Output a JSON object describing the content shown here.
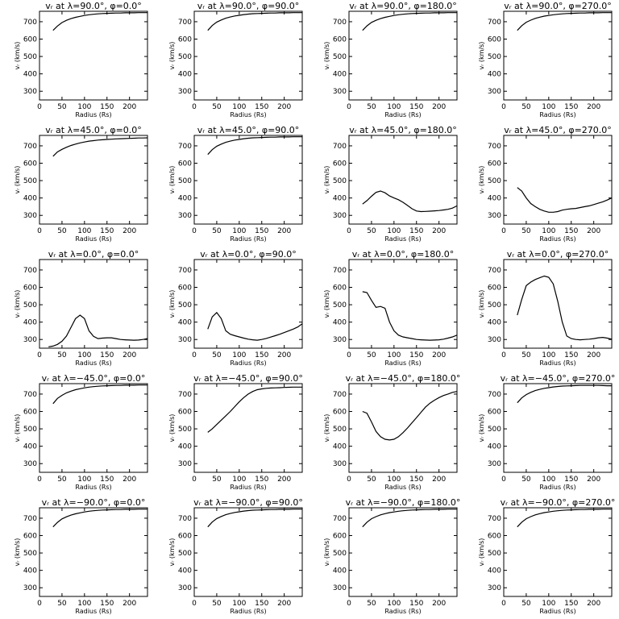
{
  "figure": {
    "xlabel": "Radius (Rs)",
    "ylabel": "vᵣ (km/s)",
    "xlim": [
      0,
      240
    ],
    "ylim": [
      250,
      760
    ],
    "xticks": [
      0,
      50,
      100,
      150,
      200
    ],
    "yticks": [
      300,
      400,
      500,
      600,
      700
    ],
    "grid": false,
    "colors": {
      "line": "#000000",
      "background": "#ffffff"
    }
  },
  "chart_data": [
    {
      "type": "line",
      "title": "vᵣ at λ=90.0°, φ=0.0°",
      "x": [
        30,
        40,
        50,
        60,
        70,
        80,
        90,
        100,
        110,
        120,
        130,
        140,
        150,
        160,
        170,
        180,
        190,
        200,
        210,
        220,
        230,
        240
      ],
      "y": [
        650,
        675,
        695,
        708,
        718,
        725,
        731,
        736,
        740,
        743,
        745,
        747,
        748,
        749,
        750,
        750,
        751,
        751,
        751,
        752,
        752,
        752
      ]
    },
    {
      "type": "line",
      "title": "vᵣ at λ=90.0°, φ=90.0°",
      "x": [
        30,
        40,
        50,
        60,
        70,
        80,
        90,
        100,
        110,
        120,
        130,
        140,
        150,
        160,
        170,
        180,
        190,
        200,
        210,
        220,
        230,
        240
      ],
      "y": [
        650,
        678,
        698,
        710,
        720,
        727,
        733,
        737,
        741,
        744,
        746,
        747,
        748,
        749,
        750,
        750,
        751,
        751,
        751,
        752,
        752,
        752
      ]
    },
    {
      "type": "line",
      "title": "vᵣ at λ=90.0°, φ=180.0°",
      "x": [
        30,
        40,
        50,
        60,
        70,
        80,
        90,
        100,
        110,
        120,
        130,
        140,
        150,
        160,
        170,
        180,
        190,
        200,
        210,
        220,
        230,
        240
      ],
      "y": [
        650,
        676,
        696,
        708,
        718,
        725,
        731,
        736,
        740,
        743,
        745,
        747,
        748,
        749,
        750,
        750,
        751,
        751,
        751,
        752,
        752,
        752
      ]
    },
    {
      "type": "line",
      "title": "vᵣ at λ=90.0°, φ=270.0°",
      "x": [
        30,
        40,
        50,
        60,
        70,
        80,
        90,
        100,
        110,
        120,
        130,
        140,
        150,
        160,
        170,
        180,
        190,
        200,
        210,
        220,
        230,
        240
      ],
      "y": [
        650,
        677,
        697,
        709,
        719,
        726,
        732,
        736,
        740,
        743,
        745,
        747,
        748,
        749,
        750,
        750,
        751,
        751,
        751,
        752,
        752,
        752
      ]
    },
    {
      "type": "line",
      "title": "vᵣ at λ=45.0°, φ=0.0°",
      "x": [
        30,
        40,
        50,
        60,
        70,
        80,
        90,
        100,
        110,
        120,
        130,
        140,
        150,
        160,
        170,
        180,
        190,
        200,
        210,
        220,
        230,
        240
      ],
      "y": [
        640,
        665,
        680,
        692,
        702,
        710,
        717,
        722,
        727,
        730,
        733,
        735,
        737,
        738,
        740,
        741,
        742,
        743,
        744,
        745,
        745,
        746
      ]
    },
    {
      "type": "line",
      "title": "vᵣ at λ=45.0°, φ=90.0°",
      "x": [
        30,
        40,
        50,
        60,
        70,
        80,
        90,
        100,
        110,
        120,
        130,
        140,
        150,
        160,
        170,
        180,
        190,
        200,
        210,
        220,
        230,
        240
      ],
      "y": [
        650,
        678,
        698,
        710,
        720,
        727,
        733,
        737,
        741,
        744,
        746,
        747,
        748,
        749,
        750,
        750,
        751,
        751,
        751,
        752,
        752,
        752
      ]
    },
    {
      "type": "line",
      "title": "vᵣ at λ=45.0°, φ=180.0°",
      "x": [
        30,
        40,
        50,
        60,
        70,
        80,
        90,
        100,
        110,
        120,
        130,
        140,
        150,
        160,
        170,
        180,
        190,
        200,
        210,
        220,
        230,
        240
      ],
      "y": [
        365,
        385,
        410,
        432,
        440,
        430,
        412,
        400,
        390,
        375,
        357,
        338,
        325,
        322,
        323,
        324,
        326,
        328,
        331,
        335,
        342,
        355
      ]
    },
    {
      "type": "line",
      "title": "vᵣ at λ=45.0°, φ=270.0°",
      "x": [
        30,
        40,
        50,
        60,
        70,
        80,
        90,
        100,
        110,
        120,
        130,
        140,
        150,
        160,
        170,
        180,
        190,
        200,
        210,
        220,
        230,
        240
      ],
      "y": [
        460,
        440,
        400,
        368,
        350,
        335,
        325,
        318,
        318,
        322,
        330,
        335,
        338,
        340,
        345,
        350,
        355,
        362,
        370,
        378,
        388,
        400
      ]
    },
    {
      "type": "line",
      "title": "vᵣ at λ=0.0°, φ=0.0°",
      "x": [
        20,
        30,
        40,
        50,
        60,
        70,
        80,
        90,
        100,
        110,
        120,
        130,
        140,
        150,
        160,
        170,
        180,
        190,
        200,
        210,
        220,
        230,
        240
      ],
      "y": [
        258,
        262,
        272,
        290,
        320,
        370,
        420,
        440,
        420,
        350,
        318,
        305,
        308,
        310,
        310,
        305,
        300,
        298,
        297,
        296,
        297,
        300,
        305
      ]
    },
    {
      "type": "line",
      "title": "vᵣ at λ=0.0°, φ=90.0°",
      "x": [
        30,
        40,
        50,
        60,
        70,
        80,
        90,
        100,
        110,
        120,
        130,
        140,
        150,
        160,
        170,
        180,
        190,
        200,
        210,
        220,
        230,
        240
      ],
      "y": [
        360,
        430,
        455,
        420,
        350,
        330,
        322,
        315,
        308,
        302,
        298,
        296,
        300,
        306,
        314,
        322,
        330,
        340,
        350,
        360,
        372,
        390
      ]
    },
    {
      "type": "line",
      "title": "vᵣ at λ=0.0°, φ=180.0°",
      "x": [
        30,
        40,
        50,
        60,
        70,
        80,
        90,
        100,
        110,
        120,
        130,
        140,
        150,
        160,
        170,
        180,
        190,
        200,
        210,
        220,
        230,
        240
      ],
      "y": [
        575,
        570,
        525,
        485,
        490,
        480,
        400,
        350,
        325,
        315,
        310,
        305,
        300,
        298,
        297,
        296,
        297,
        298,
        302,
        308,
        315,
        325
      ]
    },
    {
      "type": "line",
      "title": "vᵣ at λ=0.0°, φ=270.0°",
      "x": [
        30,
        40,
        50,
        60,
        70,
        80,
        90,
        100,
        110,
        120,
        130,
        140,
        150,
        160,
        170,
        180,
        190,
        200,
        210,
        220,
        230,
        240
      ],
      "y": [
        440,
        530,
        610,
        630,
        645,
        655,
        665,
        658,
        620,
        520,
        400,
        320,
        305,
        300,
        298,
        300,
        302,
        305,
        310,
        312,
        308,
        302
      ]
    },
    {
      "type": "line",
      "title": "vᵣ at λ=−45.0°, φ=0.0°",
      "x": [
        30,
        40,
        50,
        60,
        70,
        80,
        90,
        100,
        110,
        120,
        130,
        140,
        150,
        160,
        170,
        180,
        190,
        200,
        210,
        220,
        230,
        240
      ],
      "y": [
        645,
        675,
        693,
        707,
        717,
        725,
        731,
        736,
        740,
        743,
        745,
        747,
        748,
        749,
        750,
        750,
        751,
        751,
        751,
        752,
        752,
        752
      ]
    },
    {
      "type": "line",
      "title": "vᵣ at λ=−45.0°, φ=90.0°",
      "x": [
        30,
        40,
        50,
        60,
        70,
        80,
        90,
        100,
        110,
        120,
        130,
        140,
        150,
        160,
        170,
        180,
        190,
        200,
        210,
        220,
        230,
        240
      ],
      "y": [
        480,
        500,
        525,
        550,
        575,
        600,
        628,
        655,
        680,
        700,
        715,
        725,
        730,
        733,
        735,
        736,
        737,
        738,
        739,
        740,
        740,
        740
      ]
    },
    {
      "type": "line",
      "title": "vᵣ at λ=−45.0°, φ=180.0°",
      "x": [
        30,
        40,
        50,
        60,
        70,
        80,
        90,
        100,
        110,
        120,
        130,
        140,
        150,
        160,
        170,
        180,
        190,
        200,
        210,
        220,
        230,
        240
      ],
      "y": [
        600,
        590,
        540,
        485,
        455,
        440,
        436,
        440,
        455,
        478,
        505,
        535,
        565,
        595,
        625,
        648,
        665,
        680,
        692,
        700,
        710,
        715
      ]
    },
    {
      "type": "line",
      "title": "vᵣ at λ=−45.0°, φ=270.0°",
      "x": [
        30,
        40,
        50,
        60,
        70,
        80,
        90,
        100,
        110,
        120,
        130,
        140,
        150,
        160,
        170,
        180,
        190,
        200,
        210,
        220,
        230,
        240
      ],
      "y": [
        650,
        678,
        697,
        710,
        720,
        727,
        733,
        737,
        741,
        744,
        746,
        747,
        748,
        749,
        750,
        750,
        750,
        750,
        750,
        749,
        748,
        748
      ]
    },
    {
      "type": "line",
      "title": "vᵣ at λ=−90.0°, φ=0.0°",
      "x": [
        30,
        40,
        50,
        60,
        70,
        80,
        90,
        100,
        110,
        120,
        130,
        140,
        150,
        160,
        170,
        180,
        190,
        200,
        210,
        220,
        230,
        240
      ],
      "y": [
        650,
        676,
        696,
        708,
        718,
        725,
        731,
        736,
        740,
        743,
        745,
        747,
        748,
        749,
        750,
        750,
        751,
        751,
        751,
        752,
        752,
        752
      ]
    },
    {
      "type": "line",
      "title": "vᵣ at λ=−90.0°, φ=90.0°",
      "x": [
        30,
        40,
        50,
        60,
        70,
        80,
        90,
        100,
        110,
        120,
        130,
        140,
        150,
        160,
        170,
        180,
        190,
        200,
        210,
        220,
        230,
        240
      ],
      "y": [
        650,
        678,
        698,
        710,
        720,
        727,
        733,
        737,
        741,
        744,
        746,
        747,
        748,
        749,
        750,
        750,
        751,
        751,
        751,
        752,
        752,
        752
      ]
    },
    {
      "type": "line",
      "title": "vᵣ at λ=−90.0°, φ=180.0°",
      "x": [
        30,
        40,
        50,
        60,
        70,
        80,
        90,
        100,
        110,
        120,
        130,
        140,
        150,
        160,
        170,
        180,
        190,
        200,
        210,
        220,
        230,
        240
      ],
      "y": [
        650,
        677,
        697,
        709,
        719,
        726,
        732,
        736,
        740,
        743,
        745,
        747,
        748,
        749,
        750,
        750,
        751,
        751,
        751,
        752,
        752,
        752
      ]
    },
    {
      "type": "line",
      "title": "vᵣ at λ=−90.0°, φ=270.0°",
      "x": [
        30,
        40,
        50,
        60,
        70,
        80,
        90,
        100,
        110,
        120,
        130,
        140,
        150,
        160,
        170,
        180,
        190,
        200,
        210,
        220,
        230,
        240
      ],
      "y": [
        650,
        677,
        697,
        709,
        719,
        726,
        732,
        736,
        740,
        743,
        745,
        747,
        748,
        749,
        750,
        750,
        751,
        751,
        751,
        752,
        752,
        752
      ]
    }
  ]
}
